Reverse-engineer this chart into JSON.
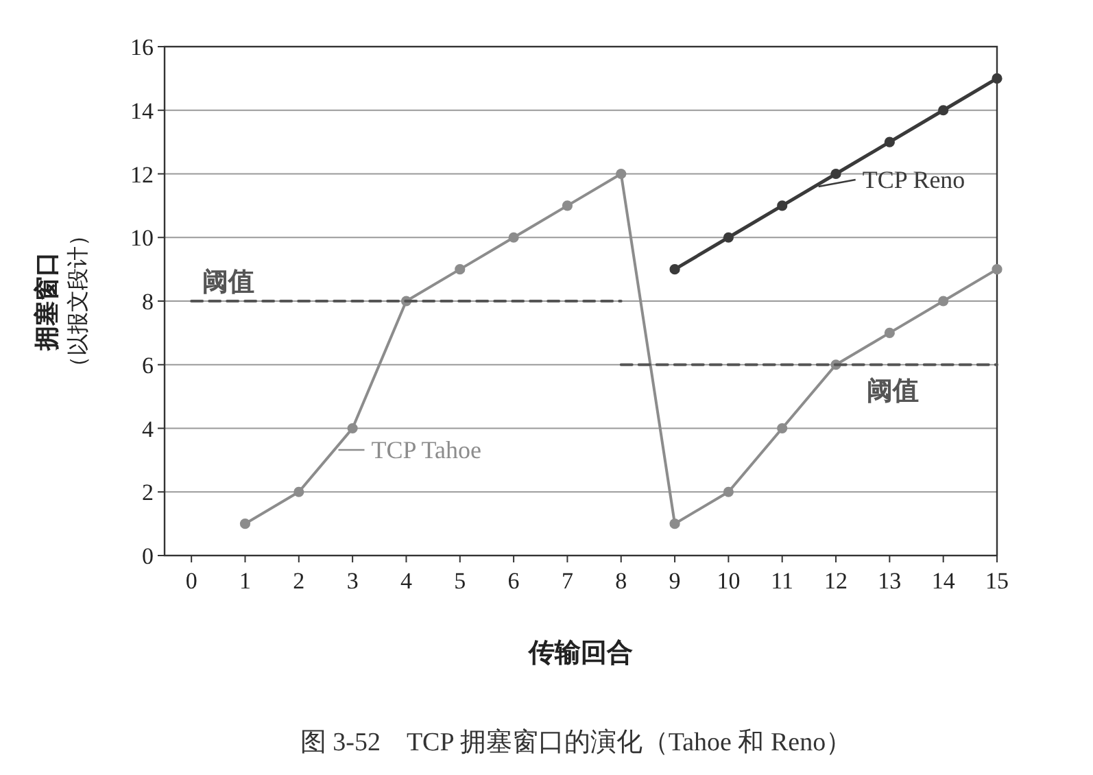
{
  "chart_data": {
    "type": "line",
    "xlabel": "传输回合",
    "ylabel": "拥塞窗口（以报文段计）",
    "x": [
      1,
      2,
      3,
      4,
      5,
      6,
      7,
      8,
      9,
      10,
      11,
      12,
      13,
      14,
      15
    ],
    "series": [
      {
        "name": "TCP Tahoe",
        "color": "#8c8c8c",
        "values": [
          1,
          2,
          4,
          8,
          9,
          10,
          11,
          12,
          1,
          2,
          4,
          6,
          7,
          8,
          9
        ]
      },
      {
        "name": "TCP Reno",
        "color": "#3a3a3a",
        "x": [
          9,
          10,
          11,
          12,
          13,
          14,
          15
        ],
        "values": [
          9,
          10,
          11,
          12,
          13,
          14,
          15
        ]
      },
      {
        "name": "阈值",
        "color": "#555555",
        "x": [
          0,
          8
        ],
        "values": [
          8,
          8
        ],
        "line_style": "dashed",
        "marker": "none"
      },
      {
        "name": "阈值",
        "color": "#555555",
        "x": [
          8,
          15
        ],
        "values": [
          6,
          6
        ],
        "line_style": "dashed",
        "marker": "none"
      }
    ],
    "xlim": [
      -0.5,
      15
    ],
    "xticks": [
      0,
      1,
      2,
      3,
      4,
      5,
      6,
      7,
      8,
      9,
      10,
      11,
      12,
      13,
      14,
      15
    ],
    "ylim": [
      0,
      16
    ],
    "yticks": [
      0,
      2,
      4,
      6,
      8,
      10,
      12,
      14,
      16
    ],
    "grid": "y",
    "marker": "circle",
    "line_style": "solid",
    "legend": "bottom right",
    "annotations": [
      "图 3-52　TCP 拥塞窗口的演化（Tahoe 和 Reno）"
    ]
  }
}
